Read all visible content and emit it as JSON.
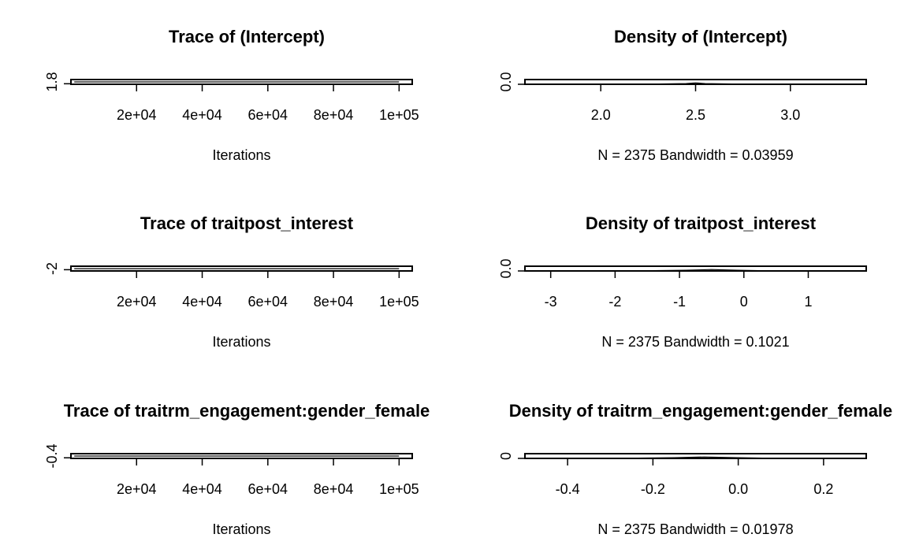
{
  "chart_data": [
    {
      "type": "line",
      "panel": "trace",
      "title": "Trace of (Intercept)",
      "xlabel": "Iterations",
      "x_tick_labels": [
        "2e+04",
        "4e+04",
        "6e+04",
        "8e+04",
        "1e+05"
      ],
      "x_tick_values": [
        20000,
        40000,
        60000,
        80000,
        100000
      ],
      "xlim": [
        0,
        104000
      ],
      "y_tick_labels": [
        "1.8"
      ],
      "y_tick_values": [
        1.8
      ],
      "ylim": [
        1.6,
        3.4
      ],
      "series": [
        {
          "x": [
            1000,
            100000
          ],
          "y": [
            2.5,
            2.5
          ]
        }
      ]
    },
    {
      "type": "line",
      "panel": "density",
      "title": "Density of (Intercept)",
      "xlabel": "N = 2375   Bandwidth = 0.03959",
      "x_tick_labels": [
        "2.0",
        "2.5",
        "3.0"
      ],
      "x_tick_values": [
        2.0,
        2.5,
        3.0
      ],
      "xlim": [
        1.6,
        3.4
      ],
      "y_tick_labels": [
        "0.0"
      ],
      "y_tick_values": [
        0.0
      ],
      "ylim": [
        0,
        1
      ],
      "series": [
        {
          "x": [
            1.6,
            2.2,
            2.45,
            2.5,
            2.55,
            2.8,
            3.4
          ],
          "y": [
            0,
            0,
            0.15,
            0.3,
            0.15,
            0,
            0
          ]
        }
      ]
    },
    {
      "type": "line",
      "panel": "trace",
      "title": "Trace of traitpost_interest",
      "xlabel": "Iterations",
      "x_tick_labels": [
        "2e+04",
        "4e+04",
        "6e+04",
        "8e+04",
        "1e+05"
      ],
      "x_tick_values": [
        20000,
        40000,
        60000,
        80000,
        100000
      ],
      "xlim": [
        0,
        104000
      ],
      "y_tick_labels": [
        "-2"
      ],
      "y_tick_values": [
        -2
      ],
      "ylim": [
        -3.4,
        1.9
      ],
      "series": [
        {
          "x": [
            1000,
            100000
          ],
          "y": [
            -0.8,
            -0.8
          ]
        }
      ]
    },
    {
      "type": "line",
      "panel": "density",
      "title": "Density of traitpost_interest",
      "xlabel": "N = 2375   Bandwidth = 0.1021",
      "x_tick_labels": [
        "-3",
        "-2",
        "-1",
        "0",
        "1"
      ],
      "x_tick_values": [
        -3,
        -2,
        -1,
        0,
        1
      ],
      "xlim": [
        -3.4,
        1.9
      ],
      "y_tick_labels": [
        "0.0"
      ],
      "y_tick_values": [
        0.0
      ],
      "ylim": [
        0,
        1
      ],
      "series": [
        {
          "x": [
            -3.4,
            -1.8,
            -0.9,
            -0.5,
            -0.1,
            0.5,
            1.9
          ],
          "y": [
            0,
            0,
            0.15,
            0.3,
            0.15,
            0,
            0
          ]
        }
      ]
    },
    {
      "type": "line",
      "panel": "trace",
      "title": "Trace of traitrm_engagement:gender_female",
      "xlabel": "Iterations",
      "x_tick_labels": [
        "2e+04",
        "4e+04",
        "6e+04",
        "8e+04",
        "1e+05"
      ],
      "x_tick_values": [
        20000,
        40000,
        60000,
        80000,
        100000
      ],
      "xlim": [
        0,
        104000
      ],
      "y_tick_labels": [
        "-0.4"
      ],
      "y_tick_values": [
        -0.4
      ],
      "ylim": [
        -0.5,
        0.3
      ],
      "series": [
        {
          "x": [
            1000,
            100000
          ],
          "y": [
            -0.1,
            -0.1
          ]
        }
      ]
    },
    {
      "type": "line",
      "panel": "density",
      "title": "Density of traitrm_engagement:gender_female",
      "xlabel": "N = 2375   Bandwidth = 0.01978",
      "x_tick_labels": [
        "-0.4",
        "-0.2",
        "0.0",
        "0.2"
      ],
      "x_tick_values": [
        -0.4,
        -0.2,
        0.0,
        0.2
      ],
      "xlim": [
        -0.5,
        0.3
      ],
      "y_tick_labels": [
        "0"
      ],
      "y_tick_values": [
        0
      ],
      "ylim": [
        0,
        1
      ],
      "series": [
        {
          "x": [
            -0.5,
            -0.3,
            -0.15,
            -0.08,
            0.0,
            0.1,
            0.3
          ],
          "y": [
            0,
            0,
            0.15,
            0.3,
            0.15,
            0,
            0
          ]
        }
      ]
    }
  ]
}
